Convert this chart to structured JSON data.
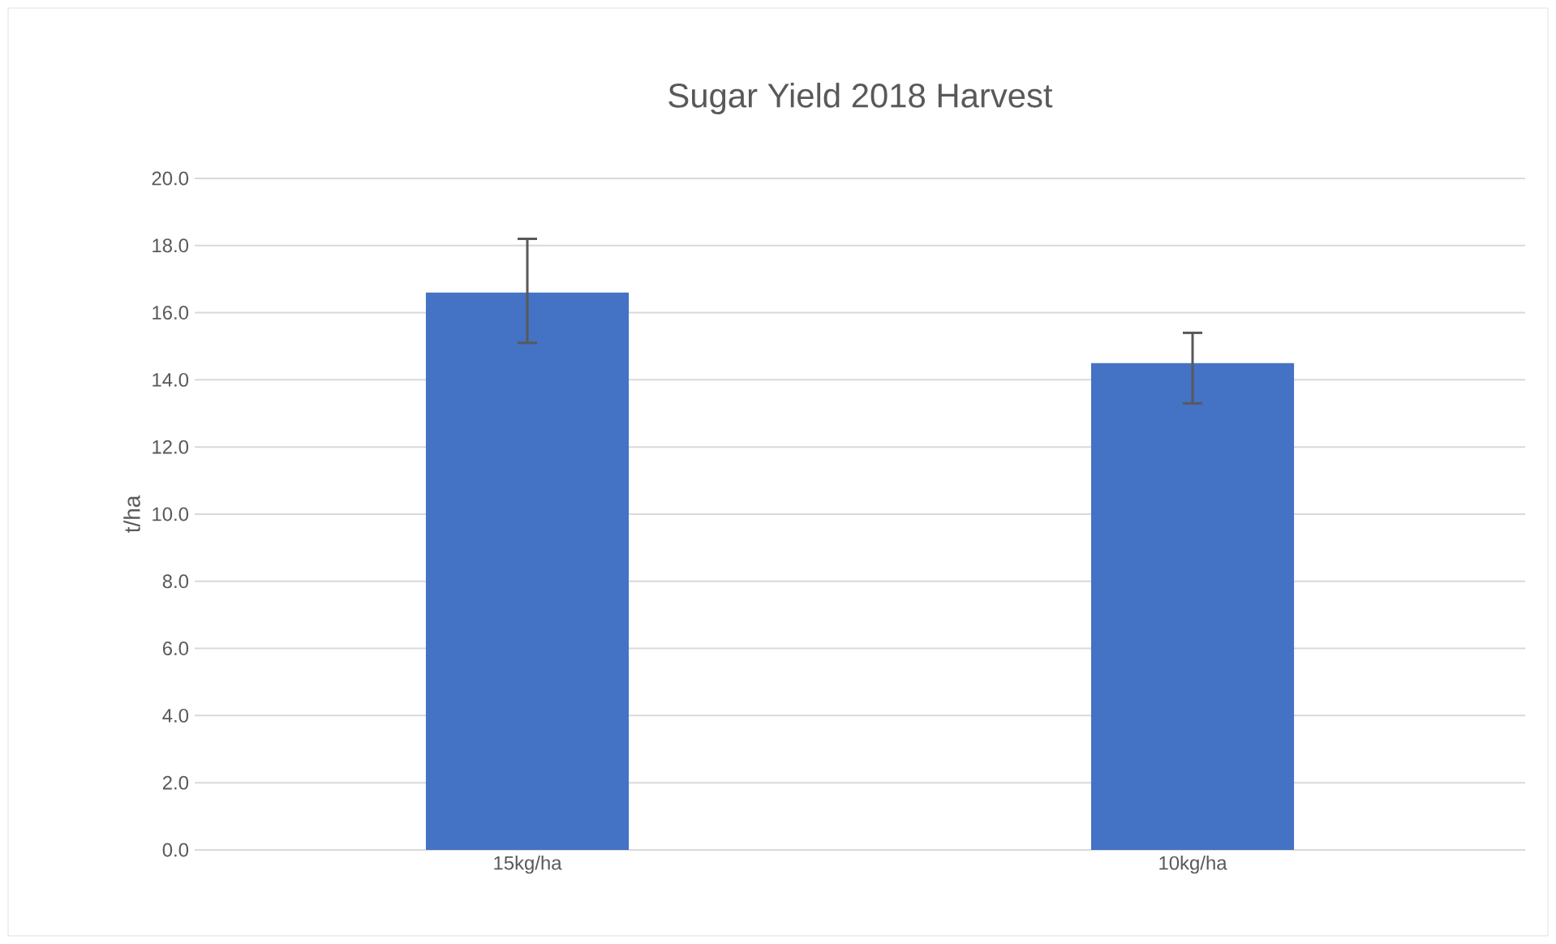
{
  "chart_data": {
    "type": "bar",
    "title": "Sugar Yield 2018 Harvest",
    "ylabel": "t/ha",
    "categories": [
      "15kg/ha",
      "10kg/ha"
    ],
    "values": [
      16.6,
      14.5
    ],
    "errors": [
      [
        15.1,
        18.2
      ],
      [
        13.3,
        15.4
      ]
    ],
    "color": "#4472c4",
    "ylim": [
      0,
      20
    ],
    "yticks": [
      {
        "value": 0,
        "label": "0.0"
      },
      {
        "value": 2,
        "label": "2.0"
      },
      {
        "value": 4,
        "label": "4.0"
      },
      {
        "value": 6,
        "label": "6.0"
      },
      {
        "value": 8,
        "label": "8.0"
      },
      {
        "value": 10,
        "label": "10.0"
      },
      {
        "value": 12,
        "label": "12.0"
      },
      {
        "value": 14,
        "label": "14.0"
      },
      {
        "value": 16,
        "label": "16.0"
      },
      {
        "value": 18,
        "label": "18.0"
      },
      {
        "value": 20,
        "label": "20.0"
      }
    ],
    "grid": "y"
  }
}
